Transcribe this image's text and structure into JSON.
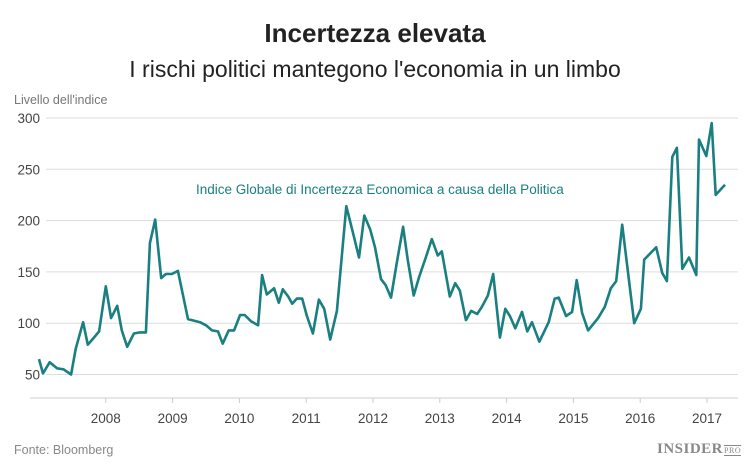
{
  "title": "Incertezza elevata",
  "subtitle": "I rischi politici mantegono l'economia in un limbo",
  "source": "Fonte: Bloomberg",
  "logo": {
    "text": "INSIDER",
    "sub": "PRO"
  },
  "chart_data": {
    "type": "line",
    "title": "Incertezza elevata",
    "subtitle": "I rischi politici mantegono l'economia in un limbo",
    "xlabel": "",
    "ylabel": "Livello dell'indice",
    "ylim": [
      25,
      300
    ],
    "xlim": [
      2007,
      2017.45
    ],
    "yticks": [
      50,
      100,
      150,
      200,
      250,
      300
    ],
    "xticks": [
      2008,
      2009,
      2010,
      2011,
      2012,
      2013,
      2014,
      2015,
      2016,
      2017
    ],
    "grid": true,
    "color": "#1a7f80",
    "annotation": "Indice Globale di Incertezza Economica a causa della Politica",
    "series": [
      {
        "x": [
          2007.0,
          2007.06,
          2007.16,
          2007.27,
          2007.37,
          2007.48,
          2007.55,
          2007.66,
          2007.73,
          2007.81,
          2007.9,
          2008.0,
          2008.08,
          2008.17,
          2008.24,
          2008.32,
          2008.42,
          2008.51,
          2008.6,
          2008.66,
          2008.74,
          2008.83,
          2008.9,
          2008.99,
          2009.08,
          2009.23,
          2009.41,
          2009.5,
          2009.59,
          2009.68,
          2009.75,
          2009.84,
          2009.92,
          2010.01,
          2010.08,
          2010.17,
          2010.28,
          2010.34,
          2010.41,
          2010.52,
          2010.59,
          2010.65,
          2010.73,
          2010.79,
          2010.86,
          2010.94,
          2011.01,
          2011.1,
          2011.19,
          2011.27,
          2011.36,
          2011.46,
          2011.6,
          2011.7,
          2011.79,
          2011.87,
          2011.96,
          2012.03,
          2012.12,
          2012.19,
          2012.27,
          2012.36,
          2012.45,
          2012.52,
          2012.61,
          2012.69,
          2012.79,
          2012.88,
          2012.97,
          2013.03,
          2013.15,
          2013.23,
          2013.3,
          2013.39,
          2013.47,
          2013.56,
          2013.63,
          2013.72,
          2013.8,
          2013.9,
          2013.98,
          2014.05,
          2014.13,
          2014.23,
          2014.31,
          2014.38,
          2014.49,
          2014.63,
          2014.72,
          2014.78,
          2014.89,
          2014.98,
          2015.05,
          2015.13,
          2015.22,
          2015.37,
          2015.47,
          2015.56,
          2015.64,
          2015.73,
          2015.91,
          2016.01,
          2016.06,
          2016.24,
          2016.33,
          2016.4,
          2016.48,
          2016.55,
          2016.63,
          2016.73,
          2016.84,
          2016.88,
          2016.99,
          2017.07,
          2017.13,
          2017.27
        ],
        "y": [
          65,
          51,
          62,
          56,
          55,
          50,
          75,
          101,
          79,
          85,
          92,
          136,
          105,
          117,
          93,
          77,
          90,
          91,
          91,
          178,
          201,
          144,
          148,
          148,
          151,
          104,
          101,
          98,
          93,
          92,
          80,
          93,
          93,
          108,
          108,
          102,
          98,
          147,
          128,
          134,
          120,
          133,
          126,
          119,
          124,
          124,
          107,
          90,
          123,
          114,
          84,
          112,
          214,
          188,
          164,
          205,
          191,
          174,
          143,
          137,
          125,
          160,
          194,
          162,
          127,
          145,
          164,
          182,
          166,
          170,
          126,
          139,
          132,
          103,
          112,
          109,
          116,
          127,
          148,
          86,
          114,
          107,
          95,
          111,
          92,
          101,
          82,
          101,
          124,
          125,
          107,
          111,
          142,
          110,
          93,
          105,
          116,
          134,
          141,
          196,
          100,
          114,
          162,
          174,
          149,
          141,
          262,
          271,
          153,
          164,
          147,
          279,
          263,
          295,
          225,
          235
        ]
      }
    ]
  }
}
